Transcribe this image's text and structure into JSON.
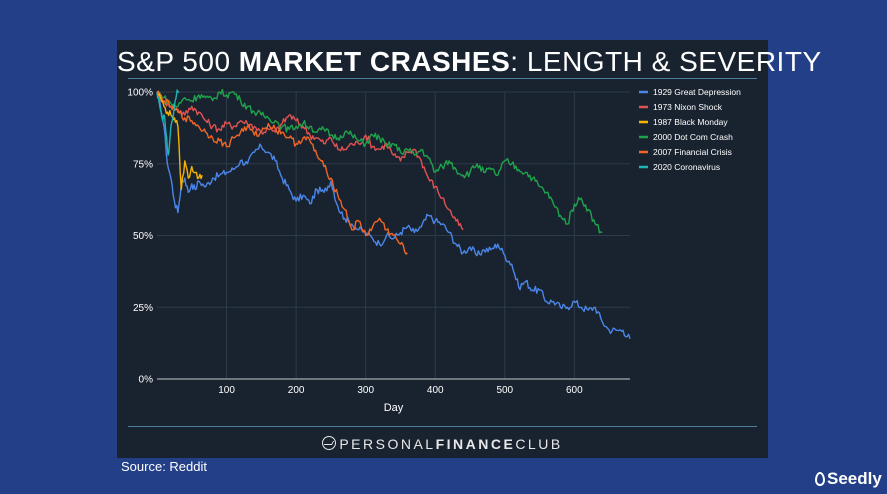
{
  "title": {
    "prefix": "S&P 500 ",
    "bold": "MARKET CRASHES",
    "suffix": ": LENGTH & SEVERITY"
  },
  "brand": {
    "light1": "PERSONAL",
    "bold": "FINANCE",
    "light2": "CLUB"
  },
  "source": "Source: Reddit",
  "seedly": "Seedly",
  "chart_data": {
    "type": "line",
    "title": "S&P 500 MARKET CRASHES: LENGTH & SEVERITY",
    "xlabel": "Day",
    "ylabel": "",
    "xlim": [
      0,
      680
    ],
    "ylim": [
      0,
      100
    ],
    "xticks": [
      100,
      200,
      300,
      400,
      500,
      600
    ],
    "yticks": [
      0,
      25,
      50,
      75,
      100
    ],
    "ytick_labels": [
      "0%",
      "25%",
      "50%",
      "75%",
      "100%"
    ],
    "grid": true,
    "legend": "right",
    "series": [
      {
        "name": "1929 Great Depression",
        "color": "#4a86e8",
        "x": [
          0,
          5,
          10,
          15,
          20,
          25,
          30,
          35,
          40,
          45,
          50,
          55,
          60,
          70,
          80,
          90,
          100,
          110,
          120,
          130,
          140,
          150,
          160,
          170,
          180,
          190,
          200,
          210,
          220,
          230,
          240,
          250,
          260,
          270,
          280,
          290,
          300,
          310,
          320,
          330,
          340,
          350,
          360,
          370,
          380,
          390,
          400,
          410,
          420,
          430,
          440,
          450,
          460,
          470,
          480,
          490,
          500,
          510,
          520,
          530,
          540,
          550,
          560,
          570,
          580,
          590,
          600,
          610,
          620,
          630,
          640,
          650,
          660,
          670,
          680
        ],
        "y": [
          100,
          95,
          88,
          75,
          70,
          62,
          58,
          68,
          70,
          65,
          68,
          66,
          69,
          67,
          70,
          71,
          72,
          73,
          76,
          75,
          79,
          81,
          79,
          76,
          70,
          66,
          62,
          64,
          61,
          66,
          65,
          69,
          60,
          56,
          54,
          52,
          51,
          49,
          47,
          50,
          49,
          51,
          53,
          51,
          53,
          57,
          55,
          54,
          51,
          47,
          44,
          46,
          43,
          45,
          45,
          47,
          43,
          40,
          32,
          34,
          31,
          31,
          27,
          27,
          25,
          25,
          27,
          25,
          24,
          25,
          20,
          17,
          17,
          17,
          14
        ]
      },
      {
        "name": "1973 Nixon Shock",
        "color": "#e05252",
        "x": [
          0,
          10,
          20,
          30,
          40,
          50,
          60,
          70,
          80,
          90,
          100,
          110,
          120,
          130,
          140,
          150,
          160,
          170,
          180,
          190,
          200,
          210,
          220,
          230,
          240,
          250,
          260,
          270,
          280,
          290,
          300,
          310,
          320,
          330,
          340,
          350,
          360,
          370,
          380,
          390,
          400,
          410,
          420,
          430,
          440
        ],
        "y": [
          100,
          97,
          95,
          94,
          92,
          95,
          93,
          90,
          88,
          87,
          89,
          88,
          90,
          89,
          88,
          86,
          87,
          86,
          89,
          92,
          90,
          88,
          85,
          84,
          82,
          84,
          80,
          80,
          82,
          82,
          85,
          81,
          80,
          82,
          78,
          76,
          79,
          80,
          76,
          70,
          67,
          63,
          59,
          55,
          52
        ]
      },
      {
        "name": "1987 Black Monday",
        "color": "#f5b400",
        "x": [
          0,
          5,
          10,
          15,
          20,
          25,
          30,
          35,
          40,
          45,
          50,
          55,
          60,
          65
        ],
        "y": [
          100,
          98,
          95,
          93,
          92,
          91,
          88,
          66,
          76,
          70,
          74,
          72,
          70,
          71
        ]
      },
      {
        "name": "2000 Dot Com Crash",
        "color": "#1fa34a",
        "x": [
          0,
          10,
          20,
          30,
          40,
          50,
          60,
          70,
          80,
          90,
          100,
          110,
          120,
          130,
          140,
          150,
          160,
          170,
          180,
          190,
          200,
          210,
          220,
          230,
          240,
          250,
          260,
          270,
          280,
          290,
          300,
          310,
          320,
          330,
          340,
          350,
          360,
          370,
          380,
          390,
          400,
          410,
          420,
          430,
          440,
          450,
          460,
          470,
          480,
          490,
          500,
          510,
          520,
          530,
          540,
          550,
          560,
          570,
          580,
          590,
          600,
          610,
          620,
          630,
          640
        ],
        "y": [
          100,
          98,
          96,
          95,
          98,
          97,
          99,
          98,
          97,
          100,
          99,
          100,
          97,
          95,
          93,
          92,
          91,
          90,
          88,
          87,
          88,
          89,
          88,
          86,
          87,
          85,
          84,
          86,
          85,
          83,
          82,
          85,
          84,
          81,
          82,
          79,
          80,
          78,
          80,
          77,
          72,
          74,
          76,
          73,
          71,
          72,
          75,
          72,
          73,
          71,
          76,
          75,
          73,
          72,
          70,
          67,
          65,
          61,
          57,
          54,
          61,
          63,
          59,
          54,
          51
        ]
      },
      {
        "name": "2007 Financial Crisis",
        "color": "#f26522",
        "x": [
          0,
          10,
          20,
          30,
          40,
          50,
          60,
          70,
          80,
          90,
          100,
          110,
          120,
          130,
          140,
          150,
          160,
          170,
          180,
          190,
          200,
          210,
          220,
          230,
          240,
          250,
          260,
          270,
          280,
          290,
          300,
          310,
          320,
          330,
          340,
          350,
          360
        ],
        "y": [
          100,
          97,
          95,
          93,
          91,
          90,
          88,
          86,
          84,
          83,
          81,
          84,
          86,
          88,
          85,
          86,
          89,
          87,
          86,
          84,
          82,
          84,
          83,
          78,
          74,
          70,
          64,
          59,
          52,
          55,
          50,
          53,
          56,
          52,
          50,
          47,
          44
        ]
      },
      {
        "name": "2020 Coronavirus",
        "color": "#1fb5b5",
        "x": [
          0,
          2,
          4,
          6,
          8,
          10,
          12,
          14,
          16,
          18,
          20,
          22,
          24,
          26,
          28,
          30,
          32
        ],
        "y": [
          100,
          98,
          95,
          93,
          90,
          92,
          88,
          84,
          78,
          82,
          88,
          90,
          93,
          97,
          99,
          100,
          100
        ]
      }
    ]
  }
}
